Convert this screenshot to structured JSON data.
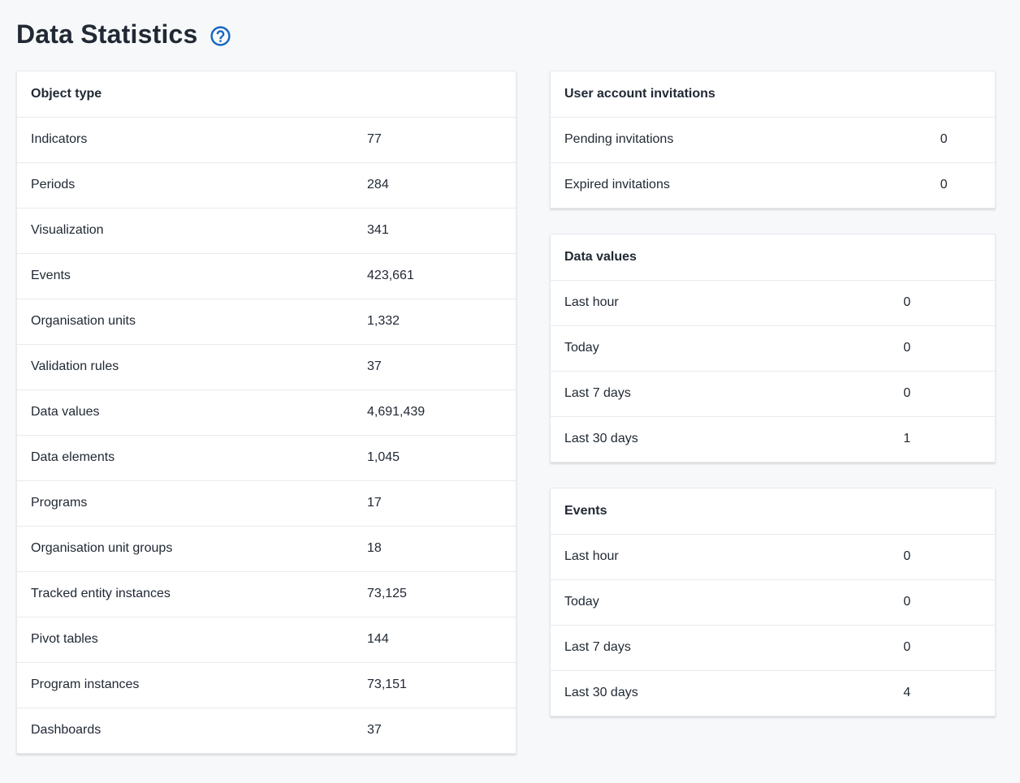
{
  "page": {
    "title": "Data Statistics",
    "background_color": "#f7f8fa",
    "accent_color": "#1565c0",
    "text_color": "#212934"
  },
  "cards": {
    "object_type": {
      "header": "Object type",
      "rows": [
        {
          "label": "Indicators",
          "value": "77"
        },
        {
          "label": "Periods",
          "value": "284"
        },
        {
          "label": "Visualization",
          "value": "341"
        },
        {
          "label": "Events",
          "value": "423,661"
        },
        {
          "label": "Organisation units",
          "value": "1,332"
        },
        {
          "label": "Validation rules",
          "value": "37"
        },
        {
          "label": "Data values",
          "value": "4,691,439"
        },
        {
          "label": "Data elements",
          "value": "1,045"
        },
        {
          "label": "Programs",
          "value": "17"
        },
        {
          "label": "Organisation unit groups",
          "value": "18"
        },
        {
          "label": "Tracked entity instances",
          "value": "73,125"
        },
        {
          "label": "Pivot tables",
          "value": "144"
        },
        {
          "label": "Program instances",
          "value": "73,151"
        },
        {
          "label": "Dashboards",
          "value": "37"
        }
      ]
    },
    "user_invitations": {
      "header": "User account invitations",
      "rows": [
        {
          "label": "Pending invitations",
          "value": "0"
        },
        {
          "label": "Expired invitations",
          "value": "0"
        }
      ]
    },
    "data_values": {
      "header": "Data values",
      "rows": [
        {
          "label": "Last hour",
          "value": "0"
        },
        {
          "label": "Today",
          "value": "0"
        },
        {
          "label": "Last 7 days",
          "value": "0"
        },
        {
          "label": "Last 30 days",
          "value": "1"
        }
      ]
    },
    "events": {
      "header": "Events",
      "rows": [
        {
          "label": "Last hour",
          "value": "0"
        },
        {
          "label": "Today",
          "value": "0"
        },
        {
          "label": "Last 7 days",
          "value": "0"
        },
        {
          "label": "Last 30 days",
          "value": "4"
        }
      ]
    }
  }
}
